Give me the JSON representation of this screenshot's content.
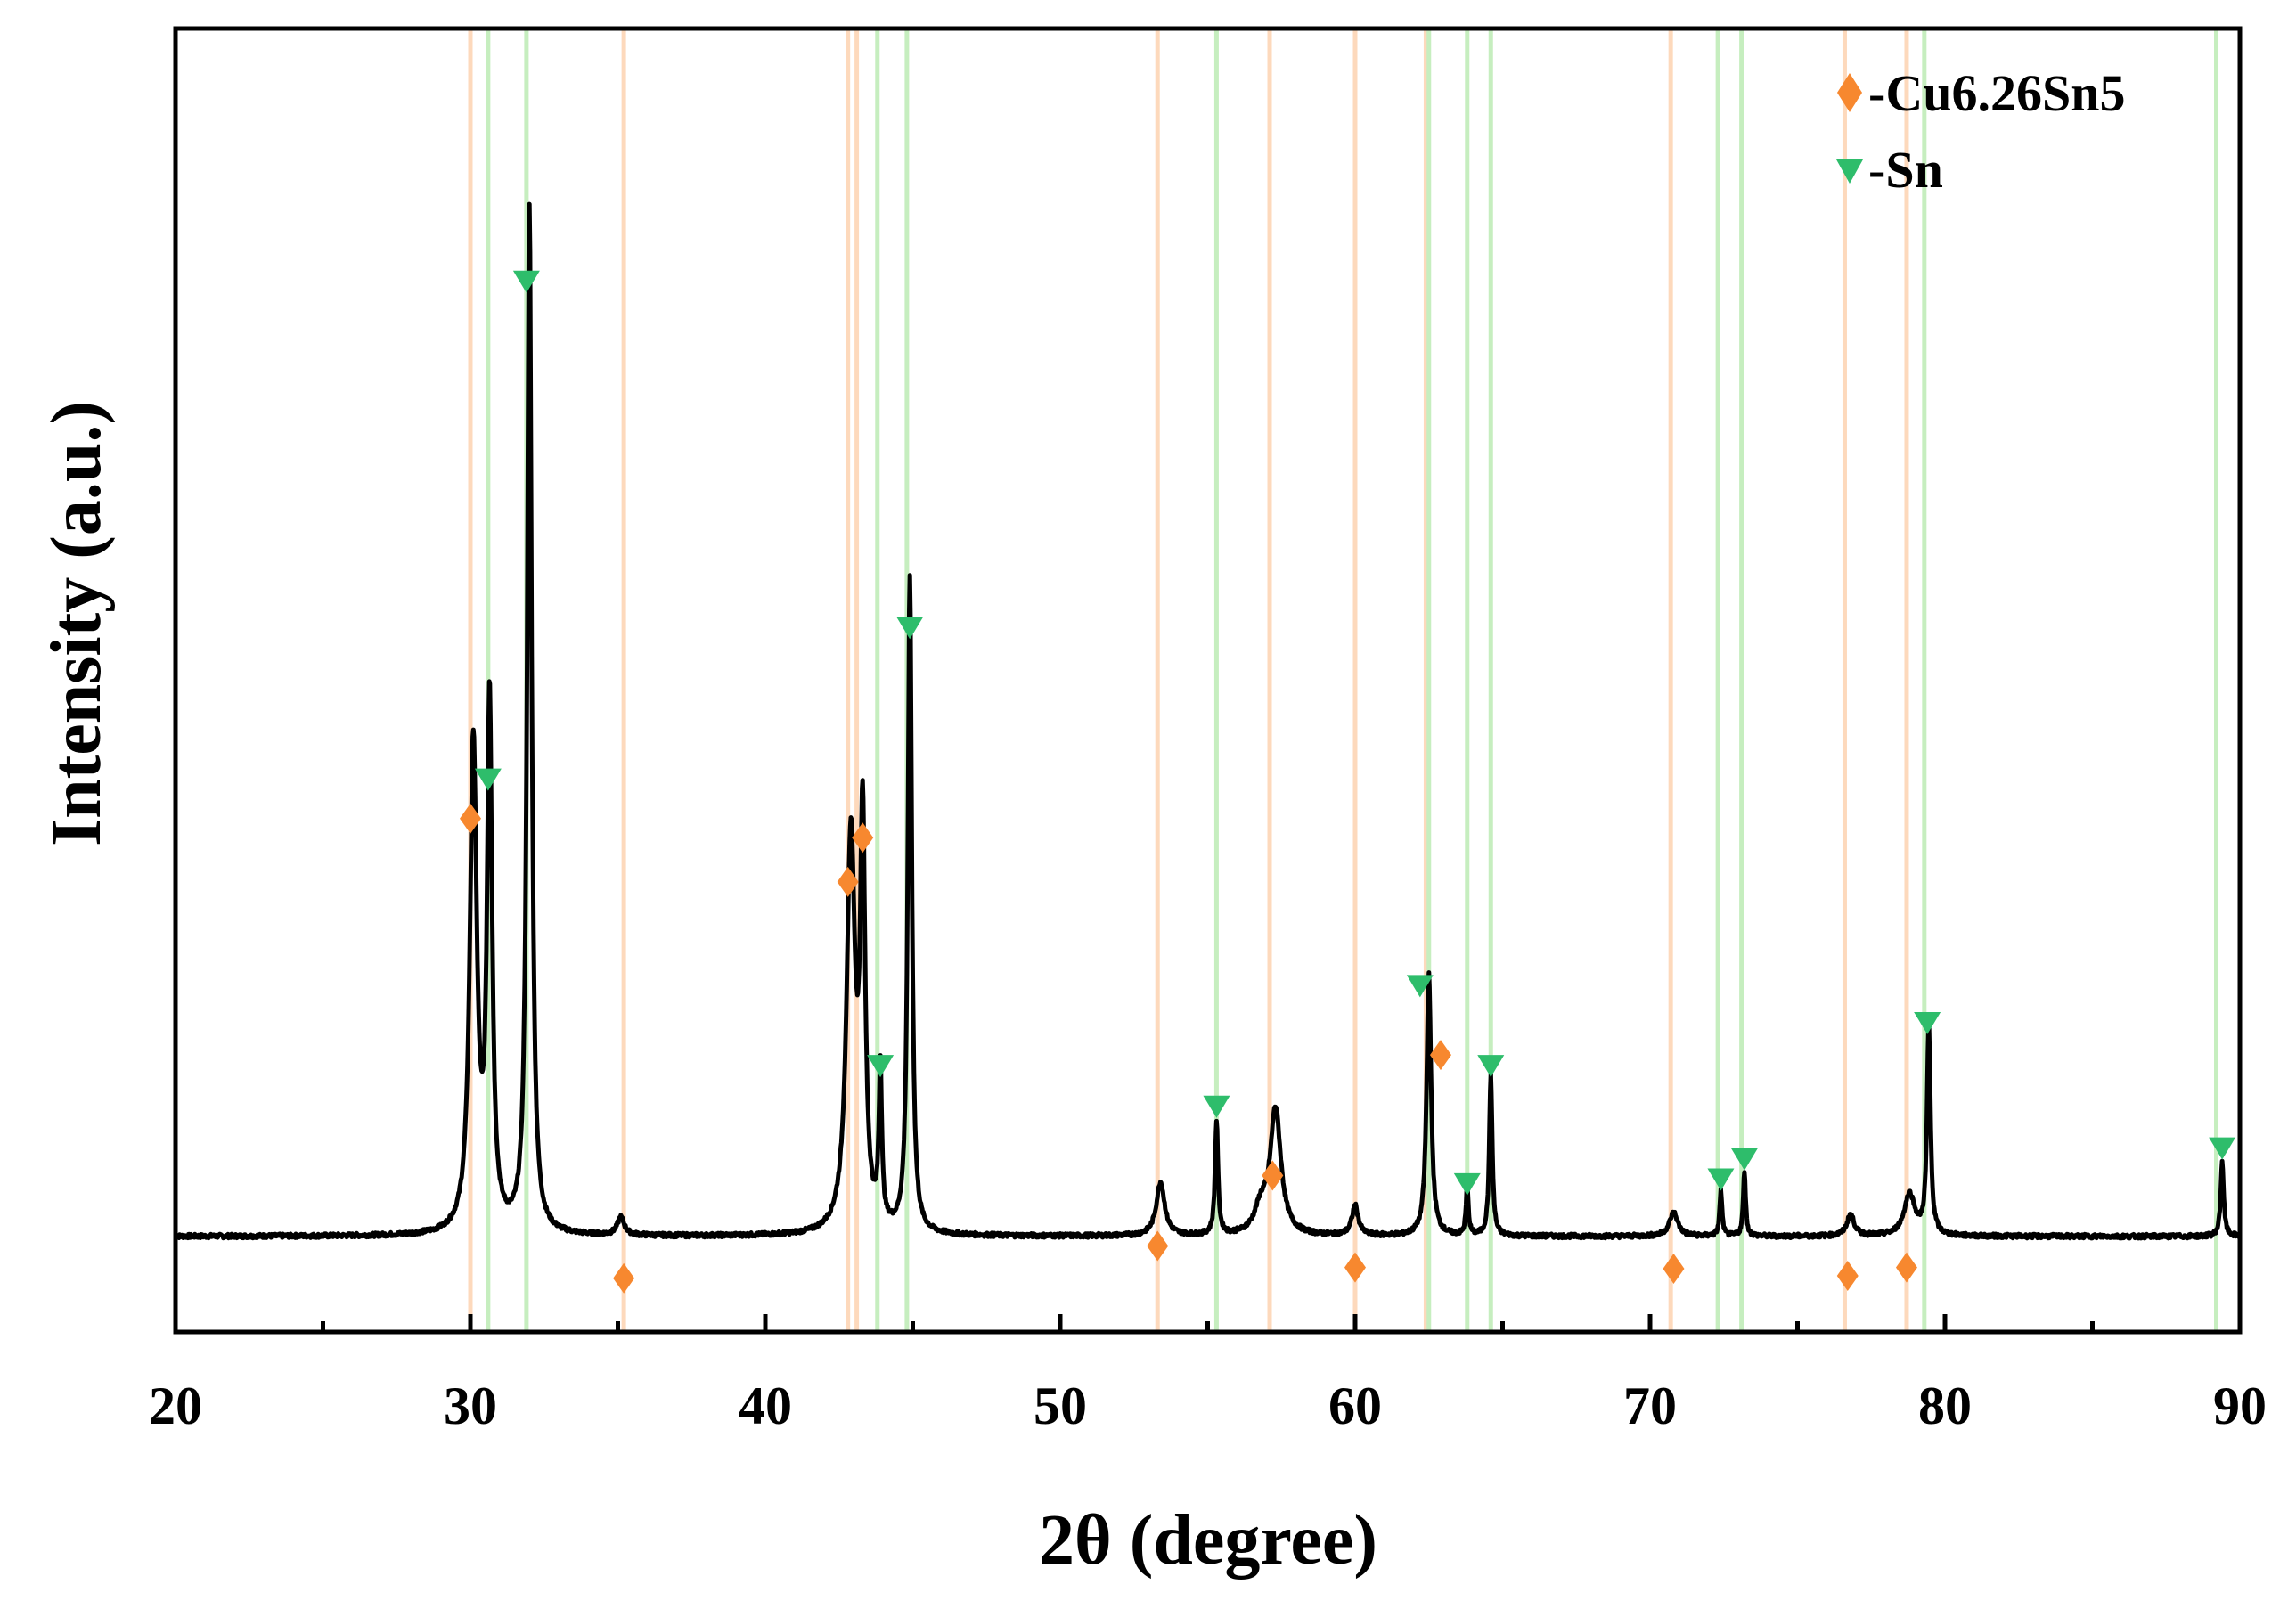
{
  "chart_data": {
    "type": "line",
    "title": "",
    "xlabel": "2θ (degree)",
    "ylabel": "Intensity (a.u.)",
    "xlim": [
      20,
      90
    ],
    "ylim": [
      0,
      100
    ],
    "x_ticks": [
      "20",
      "30",
      "40",
      "50",
      "60",
      "70",
      "80",
      "90"
    ],
    "y_ticks_shown": false,
    "grid": false,
    "legend_position": "top-right",
    "colors": {
      "pattern": "#000000",
      "cu6_26sn5": "#f7882f",
      "cu6_26sn5_line": "#fdd9bc",
      "sn": "#2ebd6b",
      "sn_line": "#c6eebf"
    },
    "legend": [
      {
        "key": "cu6_26sn5",
        "label": "-Cu6.26Sn5",
        "marker": "diamond"
      },
      {
        "key": "sn",
        "label": "-Sn",
        "marker": "triangle-down"
      }
    ],
    "baseline": 8,
    "peaks": [
      {
        "x": 30.1,
        "h": 41,
        "w": 0.14
      },
      {
        "x": 30.65,
        "h": 44,
        "w": 0.1
      },
      {
        "x": 32.0,
        "h": 86,
        "w": 0.09
      },
      {
        "x": 35.1,
        "h": 1.5,
        "w": 0.14
      },
      {
        "x": 42.9,
        "h": 33,
        "w": 0.17
      },
      {
        "x": 43.3,
        "h": 33,
        "w": 0.1
      },
      {
        "x": 43.9,
        "h": 13,
        "w": 0.06
      },
      {
        "x": 44.9,
        "h": 55,
        "w": 0.08
      },
      {
        "x": 53.4,
        "h": 4.5,
        "w": 0.17
      },
      {
        "x": 55.3,
        "h": 9.5,
        "w": 0.06
      },
      {
        "x": 56.8,
        "h": 2,
        "w": 0.25
      },
      {
        "x": 57.3,
        "h": 10.5,
        "w": 0.22
      },
      {
        "x": 60.0,
        "h": 2.5,
        "w": 0.13
      },
      {
        "x": 62.5,
        "h": 22,
        "w": 0.09
      },
      {
        "x": 63.8,
        "h": 4,
        "w": 0.05
      },
      {
        "x": 64.6,
        "h": 13.5,
        "w": 0.06
      },
      {
        "x": 70.8,
        "h": 2,
        "w": 0.17
      },
      {
        "x": 72.4,
        "h": 3.8,
        "w": 0.05
      },
      {
        "x": 73.2,
        "h": 5.5,
        "w": 0.05
      },
      {
        "x": 76.8,
        "h": 1.8,
        "w": 0.15
      },
      {
        "x": 78.8,
        "h": 3.5,
        "w": 0.22
      },
      {
        "x": 79.45,
        "h": 17.5,
        "w": 0.07
      },
      {
        "x": 89.4,
        "h": 6.3,
        "w": 0.06
      }
    ],
    "series": [
      {
        "key": "cu6_26sn5",
        "name": "Cu6.26Sn5",
        "reference_lines": [
          30.0,
          35.2,
          42.8,
          43.1,
          53.3,
          57.1,
          60.0,
          62.4,
          70.7,
          76.6,
          78.7
        ],
        "markers": [
          {
            "x": 30.0,
            "y": 43
          },
          {
            "x": 35.2,
            "y": 4.5
          },
          {
            "x": 42.8,
            "y": 37.7
          },
          {
            "x": 43.3,
            "y": 41.4
          },
          {
            "x": 53.3,
            "y": 7.2
          },
          {
            "x": 57.2,
            "y": 13.1
          },
          {
            "x": 60.0,
            "y": 5.4
          },
          {
            "x": 62.9,
            "y": 23.2
          },
          {
            "x": 70.8,
            "y": 5.3
          },
          {
            "x": 76.7,
            "y": 4.7
          },
          {
            "x": 78.7,
            "y": 5.4
          }
        ]
      },
      {
        "key": "sn",
        "name": "Sn",
        "reference_lines": [
          30.6,
          31.9,
          43.8,
          44.8,
          55.3,
          62.5,
          63.8,
          64.6,
          72.3,
          73.1,
          79.3,
          89.2
        ],
        "markers": [
          {
            "x": 30.6,
            "y": 46.3
          },
          {
            "x": 31.9,
            "y": 88.0
          },
          {
            "x": 43.9,
            "y": 22.3
          },
          {
            "x": 44.9,
            "y": 59.0
          },
          {
            "x": 55.3,
            "y": 18.9
          },
          {
            "x": 62.2,
            "y": 29.0
          },
          {
            "x": 63.8,
            "y": 12.4
          },
          {
            "x": 64.6,
            "y": 22.3
          },
          {
            "x": 72.4,
            "y": 12.8
          },
          {
            "x": 73.2,
            "y": 14.5
          },
          {
            "x": 79.4,
            "y": 25.9
          },
          {
            "x": 89.4,
            "y": 15.4
          }
        ]
      }
    ]
  }
}
